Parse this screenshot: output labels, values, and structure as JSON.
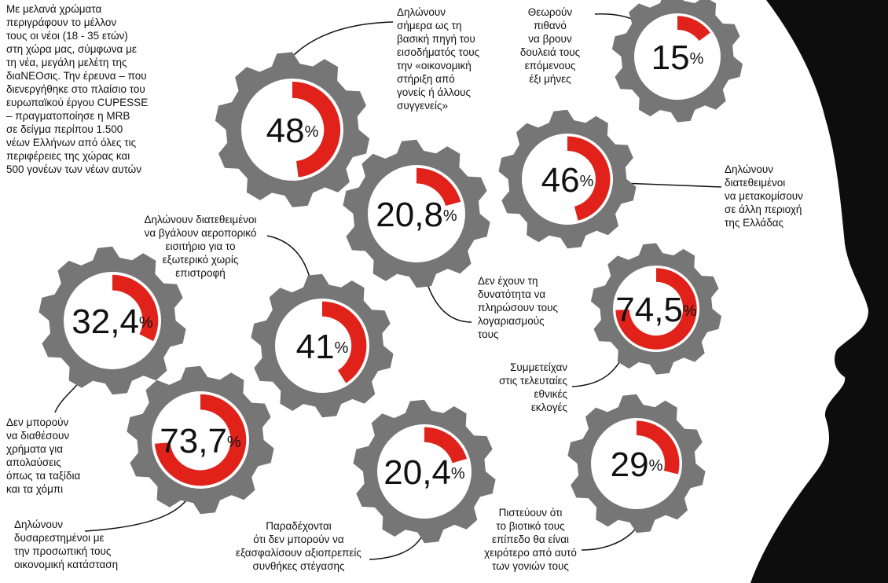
{
  "intro": [
    "Με μελανά χρώματα",
    "περιγράφουν το μέλλον",
    "τους οι νέοι (18 - 35 ετών)",
    "στη χώρα μας, σύμφωνα με",
    "τη νέα, μεγάλη μελέτη της",
    "διαΝΕΟσις. Την έρευνα – που",
    "διενεργήθηκε στο πλαίσιο του",
    "ευρωπαϊκού έργου CUPESSE",
    "– πραγματοποίησε η MRB",
    "σε δείγμα περίπου 1.500",
    "νέων Ελλήνων από όλες τις",
    "περιφέρειες της χώρας και",
    "500 γονέων των νέων αυτών"
  ],
  "unit": "%",
  "gears": [
    {
      "value": 48,
      "value_label": "48",
      "text": [
        "Δηλώνουν",
        "σήμερα ως τη",
        "βασική πηγή του",
        "εισοδήματός τους",
        "την «οικονομική",
        "στήριξη από",
        "γονείς ή άλλους",
        "συγγενείς»"
      ]
    },
    {
      "value": 15,
      "value_label": "15",
      "text": [
        "Θεωρούν",
        "πιθανό",
        "να βρουν",
        "δουλειά τους",
        "επόμενους",
        "έξι μήνες"
      ]
    },
    {
      "value": 46,
      "value_label": "46",
      "text": [
        "Δηλώνουν",
        "διατεθειμένοι",
        "να μετακομίσουν",
        "σε άλλη περιοχή",
        "της Ελλάδας"
      ]
    },
    {
      "value": 20.8,
      "value_label": "20,8",
      "text": [
        "Δεν έχουν τη",
        "δυνατότητα να",
        "πληρώσουν τους",
        "λογαριασμούς",
        "τους"
      ]
    },
    {
      "value": 32.4,
      "value_label": "32,4",
      "text": [
        "Δεν μπορούν",
        "να διαθέσουν",
        "χρήματα για",
        "απολαύσεις",
        "όπως τα ταξίδια",
        "και τα χόμπι"
      ]
    },
    {
      "value": 41,
      "value_label": "41",
      "text": [
        "Δηλώνουν διατεθειμένοι",
        "να βγάλουν αεροπορικό",
        "εισιτήριο για το",
        "εξωτερικό χωρίς",
        "επιστροφή"
      ]
    },
    {
      "value": 74.5,
      "value_label": "74,5",
      "text": [
        "Συμμετείχαν",
        "στις τελευταίες",
        "εθνικές",
        "εκλογές"
      ]
    },
    {
      "value": 73.7,
      "value_label": "73,7",
      "text": [
        "Δηλώνουν",
        "δυσαρεστημένοι με",
        "την προσωπική τους",
        "οικονομική κατάσταση"
      ]
    },
    {
      "value": 20.4,
      "value_label": "20,4",
      "text": [
        "Παραδέχονται",
        "ότι δεν μπορούν να",
        "εξασφαλίσουν αξιοπρεπείς",
        "συνθήκες στέγασης"
      ]
    },
    {
      "value": 29,
      "value_label": "29",
      "text": [
        "Πιστεύουν ότι",
        "το βιοτικό τους",
        "επίπεδο θα είναι",
        "χειρότερο από αυτό",
        "των γονιών τους"
      ]
    }
  ]
}
